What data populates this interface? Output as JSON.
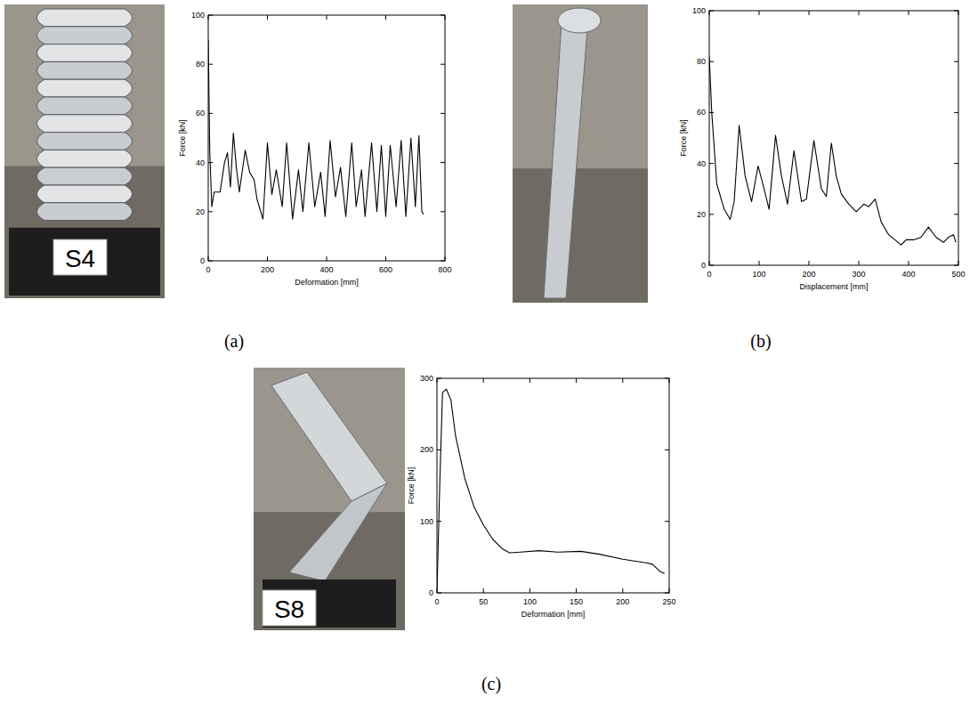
{
  "chart_data": [
    {
      "type": "line",
      "panel": "(a)",
      "photo_label": "S4",
      "x_label": "Deformation [mm]",
      "y_label": "Force [kN]",
      "xlim": [
        0,
        800
      ],
      "xticks": [
        0,
        200,
        400,
        600,
        800
      ],
      "ylim": [
        0,
        100
      ],
      "yticks": [
        0,
        20,
        40,
        60,
        80,
        100
      ],
      "color": "#000000",
      "grid": false,
      "x": [
        0,
        5,
        12,
        20,
        40,
        55,
        65,
        75,
        85,
        95,
        105,
        125,
        140,
        155,
        165,
        185,
        200,
        215,
        230,
        250,
        265,
        285,
        305,
        320,
        340,
        360,
        380,
        395,
        412,
        430,
        447,
        465,
        485,
        500,
        518,
        530,
        552,
        570,
        585,
        600,
        615,
        635,
        652,
        668,
        685,
        700,
        712,
        722,
        728
      ],
      "values": [
        90,
        45,
        22,
        28,
        28,
        40,
        44,
        30,
        52,
        38,
        28,
        45,
        36,
        33,
        25,
        17,
        48,
        27,
        37,
        22,
        48,
        17,
        37,
        20,
        48,
        22,
        36,
        18,
        49,
        26,
        38,
        18,
        48,
        22,
        37,
        18,
        48,
        20,
        47,
        18,
        47,
        22,
        49,
        18,
        50,
        22,
        51,
        20,
        19
      ]
    },
    {
      "type": "line",
      "panel": "(b)",
      "x_label": "Displacement [mm]",
      "y_label": "Force [kN]",
      "xlim": [
        0,
        500
      ],
      "xticks": [
        0,
        100,
        200,
        300,
        400,
        500
      ],
      "ylim": [
        0,
        100
      ],
      "yticks": [
        0,
        20,
        40,
        60,
        80,
        100
      ],
      "color": "#000000",
      "grid": false,
      "x": [
        0,
        5,
        15,
        30,
        42,
        50,
        60,
        72,
        85,
        98,
        110,
        120,
        133,
        145,
        157,
        170,
        185,
        195,
        210,
        225,
        235,
        245,
        255,
        265,
        280,
        295,
        310,
        320,
        333,
        345,
        360,
        385,
        395,
        410,
        425,
        440,
        455,
        470,
        480,
        490,
        495
      ],
      "values": [
        82,
        60,
        32,
        22,
        18,
        25,
        55,
        35,
        25,
        39,
        30,
        22,
        51,
        35,
        24,
        45,
        25,
        26,
        49,
        30,
        27,
        48,
        35,
        28,
        24,
        21,
        24,
        23,
        26,
        17,
        12,
        8,
        10,
        10,
        11,
        15,
        11,
        9,
        11,
        12,
        9
      ]
    },
    {
      "type": "line",
      "panel": "(c)",
      "photo_label": "S8",
      "x_label": "Deformation [mm]",
      "y_label": "Force [kN]",
      "xlim": [
        0,
        250
      ],
      "xticks": [
        0,
        50,
        100,
        150,
        200,
        250
      ],
      "ylim": [
        0,
        300
      ],
      "yticks": [
        0,
        100,
        200,
        300
      ],
      "color": "#000000",
      "grid": false,
      "x": [
        0,
        3,
        6,
        10,
        15,
        20,
        30,
        40,
        50,
        60,
        70,
        78,
        90,
        110,
        130,
        155,
        175,
        200,
        225,
        232,
        240,
        245
      ],
      "values": [
        0,
        150,
        280,
        285,
        270,
        220,
        160,
        120,
        95,
        75,
        62,
        56,
        57,
        59,
        57,
        58,
        54,
        47,
        42,
        40,
        30,
        27
      ]
    }
  ]
}
